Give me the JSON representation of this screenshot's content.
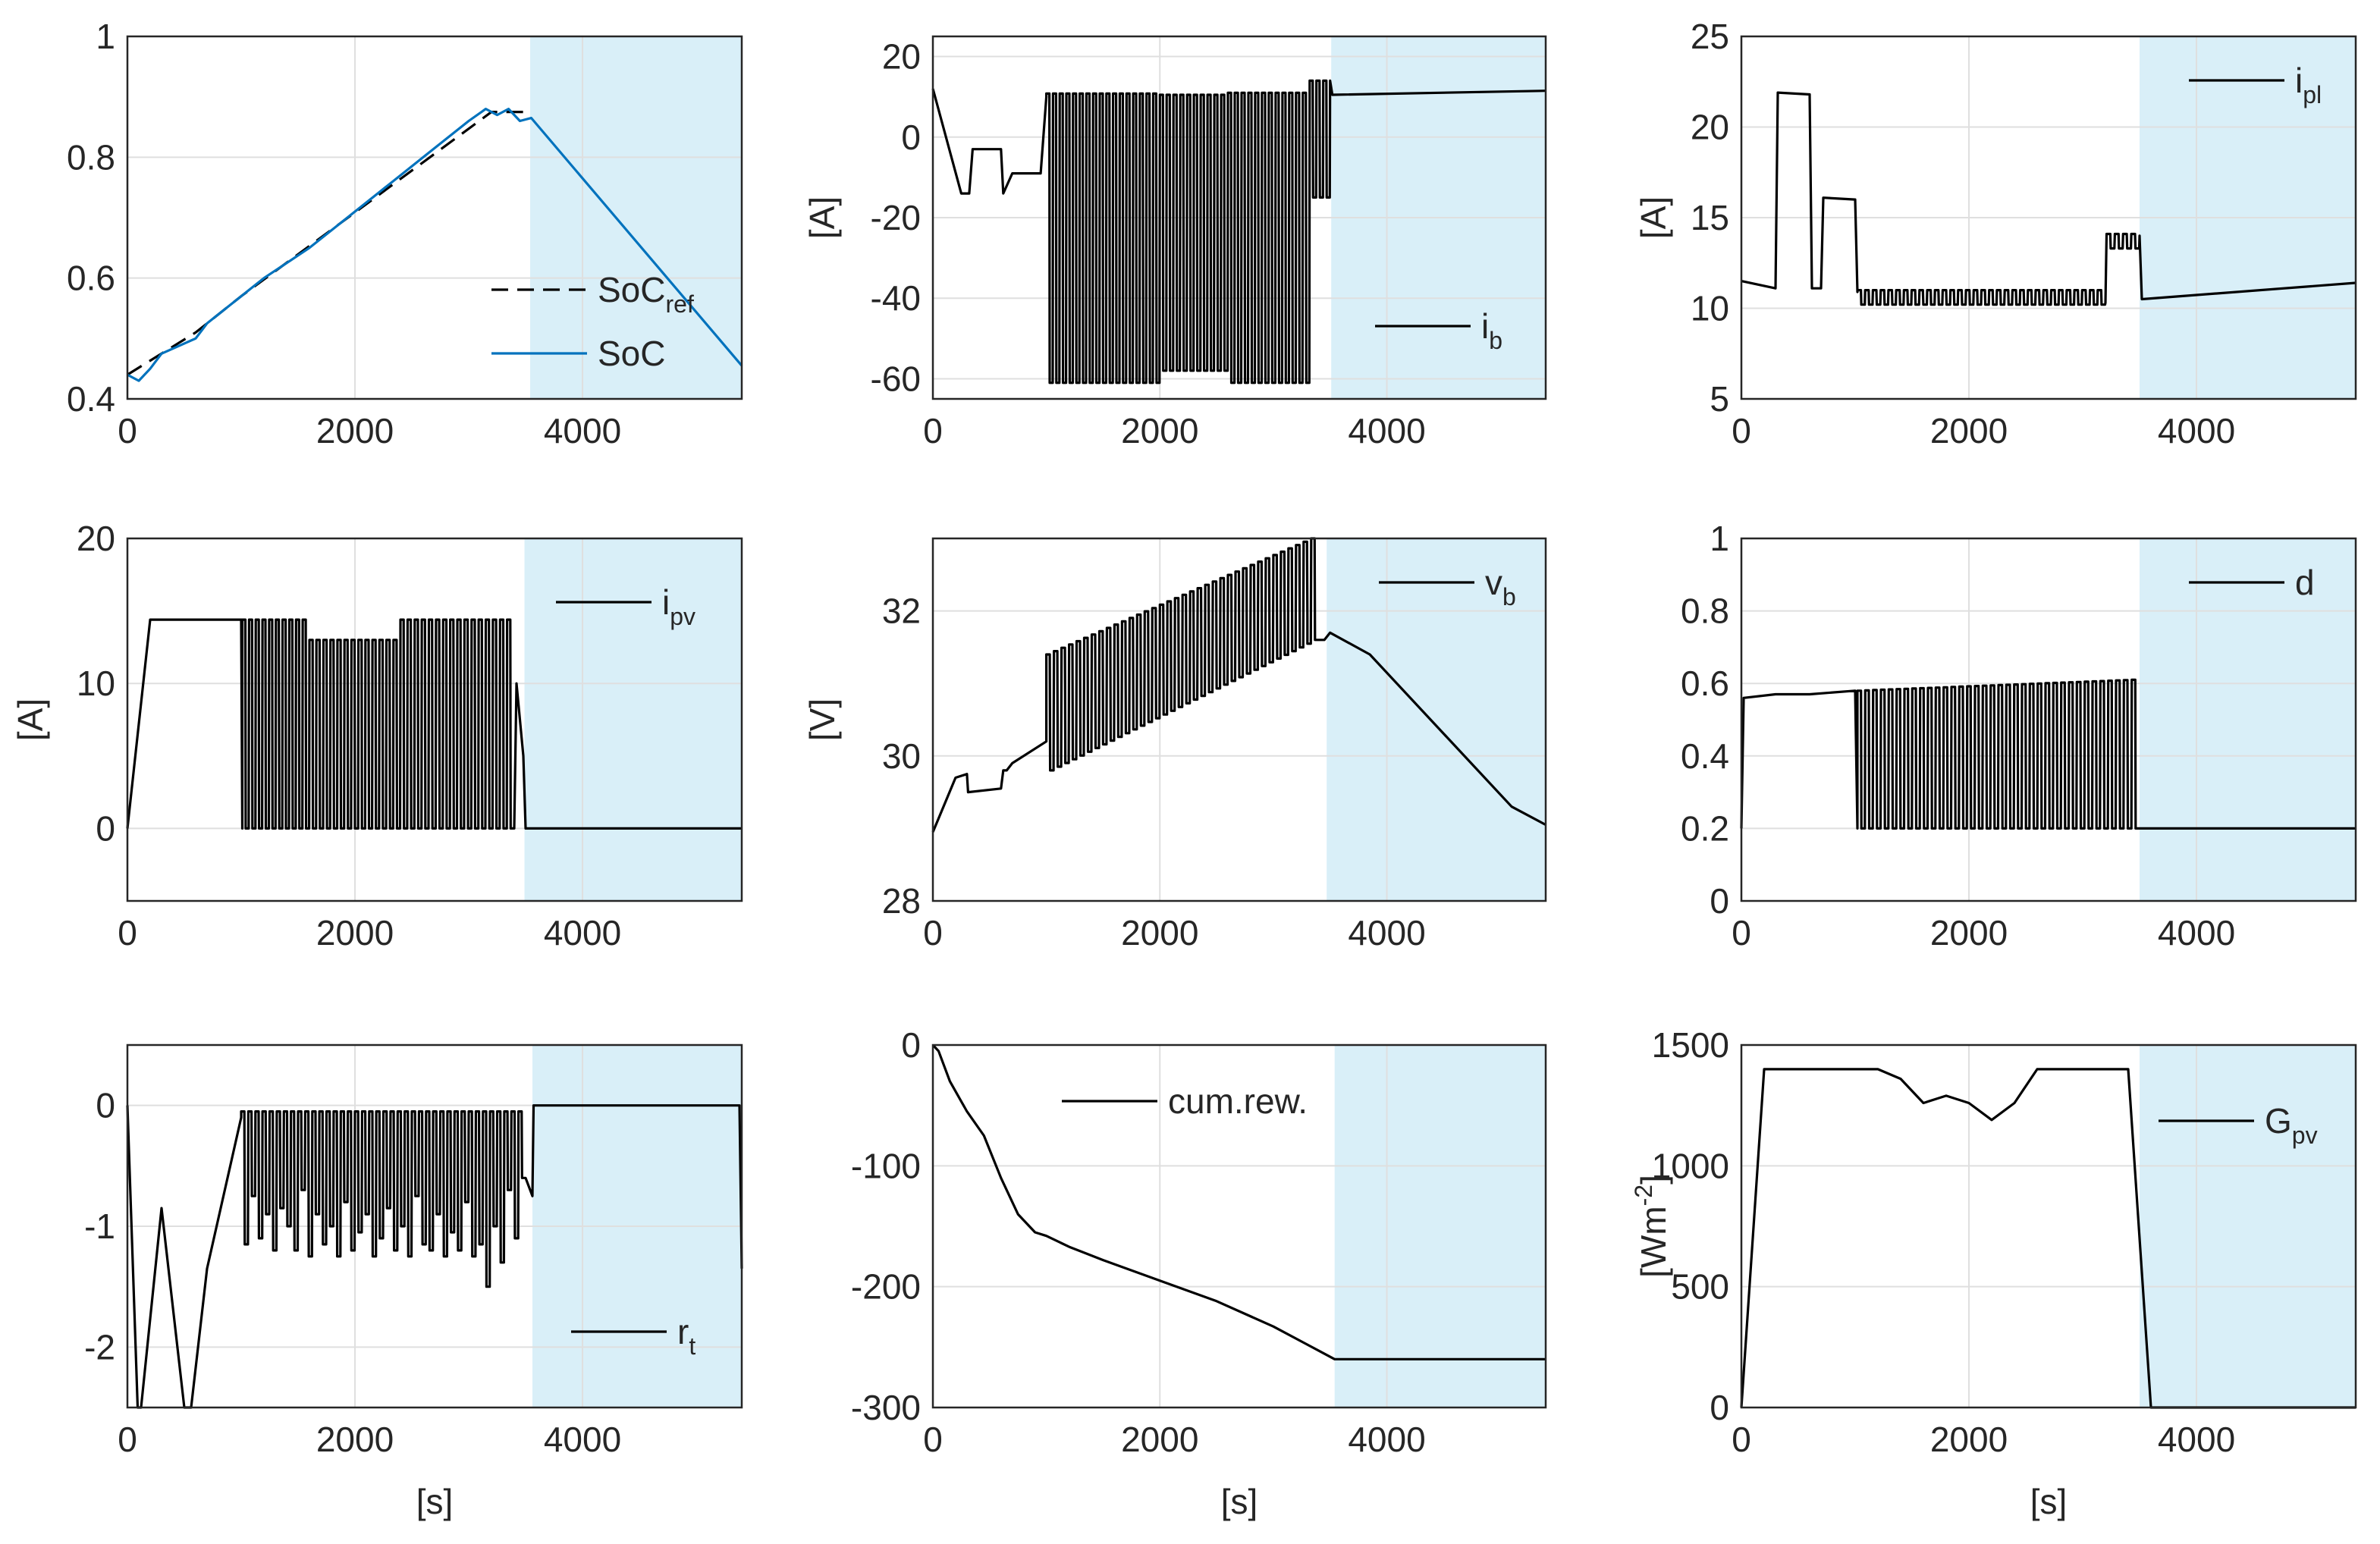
{
  "colors": {
    "shade": "#d9eff8",
    "grid": "#dfdfdf",
    "axis": "#262626",
    "line": "#000000",
    "blue": "#0072bd"
  },
  "chart_data": [
    {
      "type": "line",
      "title": "",
      "xlabel": "",
      "ylabel": "",
      "xlim": [
        0,
        5400
      ],
      "ylim": [
        0.4,
        1
      ],
      "xticks": [
        0,
        2000,
        4000
      ],
      "xtick_labels": [
        "0",
        "2000",
        "4000"
      ],
      "yticks": [
        0.4,
        0.6,
        0.8,
        1
      ],
      "ytick_labels": [
        "0.4",
        "0.6",
        "0.8",
        "1"
      ],
      "shade": [
        3540,
        5400
      ],
      "legend": {
        "position": "bottom-right",
        "entries": [
          {
            "base": "SoC",
            "sub": "ref",
            "sup": "",
            "series": 0
          },
          {
            "base": "SoC",
            "sub": "",
            "sup": "",
            "series": 1
          }
        ]
      },
      "series": [
        {
          "name": "SoC_ref",
          "color": "#000000",
          "dash": true,
          "x": [
            0,
            600,
            1000,
            3200,
            3500
          ],
          "y": [
            0.44,
            0.51,
            0.57,
            0.875,
            0.875
          ]
        },
        {
          "name": "SoC",
          "color": "#0072bd",
          "dash": false,
          "x": [
            0,
            100,
            200,
            300,
            600,
            700,
            1000,
            1200,
            1400,
            1600,
            1800,
            2000,
            2200,
            2400,
            2600,
            2800,
            3000,
            3150,
            3250,
            3350,
            3450,
            3550,
            5400
          ],
          "y": [
            0.44,
            0.43,
            0.45,
            0.475,
            0.5,
            0.525,
            0.57,
            0.6,
            0.625,
            0.65,
            0.68,
            0.71,
            0.74,
            0.77,
            0.8,
            0.83,
            0.86,
            0.88,
            0.87,
            0.88,
            0.86,
            0.865,
            0.455
          ]
        }
      ]
    },
    {
      "type": "line",
      "title": "",
      "xlabel": "",
      "ylabel": "[A]",
      "xlim": [
        0,
        5400
      ],
      "ylim": [
        -65,
        25
      ],
      "xticks": [
        0,
        2000,
        4000
      ],
      "xtick_labels": [
        "0",
        "2000",
        "4000"
      ],
      "yticks": [
        -60,
        -40,
        -20,
        0,
        20
      ],
      "ytick_labels": [
        "-60",
        "-40",
        "-20",
        "0",
        "20"
      ],
      "shade": [
        3510,
        5400
      ],
      "legend": {
        "position": "bottom-right",
        "entries": [
          {
            "base": "i",
            "sub": "b",
            "sup": "",
            "series": 0
          }
        ]
      },
      "series": [
        {
          "name": "i_b",
          "color": "#000000",
          "dash": false,
          "x": [
            0,
            250,
            320,
            350,
            600,
            620,
            700,
            950,
            1000,
            3500,
            3520,
            5400
          ],
          "y": [
            12,
            -14,
            -14,
            -3,
            -3,
            -14,
            -9,
            -9,
            10,
            14,
            10.5,
            11.5
          ],
          "osc": [
            {
              "x0": 1000,
              "x1": 2000,
              "n": 17,
              "top": 10.8,
              "bot": -61
            },
            {
              "x0": 2000,
              "x1": 2600,
              "n": 10,
              "top": 10.5,
              "bot": -58
            },
            {
              "x0": 2600,
              "x1": 3320,
              "n": 12,
              "top": 11,
              "bot": -61
            },
            {
              "x0": 3320,
              "x1": 3500,
              "n": 3,
              "top": 14,
              "bot": -15
            }
          ]
        }
      ]
    },
    {
      "type": "line",
      "title": "",
      "xlabel": "",
      "ylabel": "[A]",
      "xlim": [
        0,
        5400
      ],
      "ylim": [
        5,
        25
      ],
      "xticks": [
        0,
        2000,
        4000
      ],
      "xtick_labels": [
        "0",
        "2000",
        "4000"
      ],
      "yticks": [
        5,
        10,
        15,
        20,
        25
      ],
      "ytick_labels": [
        "5",
        "10",
        "15",
        "20",
        "25"
      ],
      "shade": [
        3500,
        5400
      ],
      "legend": {
        "position": "top-right",
        "entries": [
          {
            "base": "i",
            "sub": "pl",
            "sup": "",
            "series": 0
          }
        ]
      },
      "series": [
        {
          "name": "i_pl",
          "color": "#000000",
          "dash": false,
          "x": [
            0,
            300,
            320,
            600,
            620,
            700,
            720,
            1000,
            1020,
            3200,
            3210,
            3500,
            3520,
            5400
          ],
          "y": [
            11.5,
            11.1,
            21.9,
            21.8,
            11.1,
            11.1,
            16.1,
            16,
            10.9,
            10.3,
            14.1,
            14,
            10.5,
            11.4
          ],
          "osc": [
            {
              "x0": 1020,
              "x1": 3200,
              "n": 32,
              "top": 11,
              "bot": 10.2
            },
            {
              "x0": 3210,
              "x1": 3500,
              "n": 4,
              "top": 14.1,
              "bot": 13.3
            }
          ]
        }
      ]
    },
    {
      "type": "line",
      "title": "",
      "xlabel": "",
      "ylabel": "[A]",
      "xlim": [
        0,
        5400
      ],
      "ylim": [
        -5,
        20
      ],
      "xticks": [
        0,
        2000,
        4000
      ],
      "xtick_labels": [
        "0",
        "2000",
        "4000"
      ],
      "yticks": [
        0,
        10,
        20
      ],
      "ytick_labels": [
        "0",
        "10",
        "20"
      ],
      "shade": [
        3490,
        5400
      ],
      "legend": {
        "position": "top-right",
        "entries": [
          {
            "base": "i",
            "sub": "pv",
            "sup": "",
            "series": 0
          }
        ]
      },
      "series": [
        {
          "name": "i_pv",
          "color": "#000000",
          "dash": false,
          "x": [
            0,
            200,
            1000,
            1010,
            3400,
            3420,
            3480,
            3500,
            5400
          ],
          "y": [
            0,
            14.4,
            14.4,
            0,
            0,
            10,
            5,
            0,
            0
          ],
          "osc": [
            {
              "x0": 1010,
              "x1": 1600,
              "n": 10,
              "top": 14.4,
              "bot": 0
            },
            {
              "x0": 1600,
              "x1": 2400,
              "n": 13,
              "top": 13,
              "bot": 0
            },
            {
              "x0": 2400,
              "x1": 3400,
              "n": 16,
              "top": 14.4,
              "bot": 0
            }
          ]
        }
      ]
    },
    {
      "type": "line",
      "title": "",
      "xlabel": "",
      "ylabel": "[V]",
      "xlim": [
        0,
        5400
      ],
      "ylim": [
        28,
        33
      ],
      "xticks": [
        0,
        2000,
        4000
      ],
      "xtick_labels": [
        "0",
        "2000",
        "4000"
      ],
      "yticks": [
        28,
        30,
        32
      ],
      "ytick_labels": [
        "28",
        "30",
        "32"
      ],
      "shade": [
        3470,
        5400
      ],
      "legend": {
        "position": "top-right",
        "entries": [
          {
            "base": "v",
            "sub": "b",
            "sup": "",
            "series": 0
          }
        ]
      },
      "series": [
        {
          "name": "v_b",
          "color": "#000000",
          "dash": false,
          "x": [
            0,
            200,
            300,
            310,
            600,
            620,
            650,
            700,
            1000,
            3300,
            3450,
            3500,
            3850,
            5100,
            5400
          ],
          "y": [
            28.95,
            29.7,
            29.75,
            29.5,
            29.55,
            29.8,
            29.8,
            29.9,
            30.2,
            31.9,
            31.6,
            31.7,
            31.4,
            29.3,
            29.05
          ],
          "osc": [
            {
              "x0": 1000,
              "x1": 3400,
              "n": 36,
              "top0": 31.4,
              "top1": 33,
              "bot0": 29.8,
              "bot1": 31.6
            }
          ]
        }
      ]
    },
    {
      "type": "line",
      "title": "",
      "xlabel": "",
      "ylabel": "",
      "xlim": [
        0,
        5400
      ],
      "ylim": [
        0,
        1
      ],
      "xticks": [
        0,
        2000,
        4000
      ],
      "xtick_labels": [
        "0",
        "2000",
        "4000"
      ],
      "yticks": [
        0,
        0.2,
        0.4,
        0.6,
        0.8,
        1
      ],
      "ytick_labels": [
        "0",
        "0.2",
        "0.4",
        "0.6",
        "0.8",
        "1"
      ],
      "shade": [
        3500,
        5400
      ],
      "legend": {
        "position": "top-right",
        "entries": [
          {
            "base": "d",
            "sub": "",
            "sup": "",
            "series": 0
          }
        ]
      },
      "series": [
        {
          "name": "d",
          "color": "#000000",
          "dash": false,
          "x": [
            0,
            20,
            300,
            600,
            1000,
            1020,
            3500,
            3510,
            5400
          ],
          "y": [
            0.2,
            0.56,
            0.57,
            0.57,
            0.58,
            0.2,
            0.2,
            0.2,
            0.2
          ],
          "osc": [
            {
              "x0": 1020,
              "x1": 3500,
              "n": 36,
              "top0": 0.58,
              "top1": 0.61,
              "bot": 0.2
            }
          ]
        }
      ]
    },
    {
      "type": "line",
      "title": "",
      "xlabel": "",
      "ylabel": "",
      "xlim": [
        0,
        5400
      ],
      "ylim": [
        -2.5,
        0.5
      ],
      "xticks": [
        0,
        2000,
        4000
      ],
      "xtick_labels": [
        "0",
        "2000",
        "4000"
      ],
      "yticks": [
        -2,
        -1,
        0
      ],
      "ytick_labels": [
        "-2",
        "-1",
        "0"
      ],
      "shade": [
        3560,
        5400
      ],
      "legend": {
        "position": "bottom-right",
        "entries": [
          {
            "base": "r",
            "sub": "t",
            "sup": "",
            "series": 0
          }
        ]
      },
      "series": [
        {
          "name": "r_t",
          "color": "#000000",
          "dash": false,
          "x": [
            0,
            90,
            120,
            300,
            500,
            560,
            700,
            1000,
            3500,
            3560,
            3570,
            5380,
            5400
          ],
          "y": [
            0,
            -2.5,
            -2.5,
            -0.85,
            -2.5,
            -2.5,
            -1.35,
            -0.1,
            -0.6,
            -0.75,
            0,
            0,
            -1.35
          ],
          "osc": [
            {
              "x0": 1000,
              "x1": 3500,
              "n": 40,
              "top": -0.05,
              "bot": -1.15,
              "bot_var": [
                -1.15,
                -0.75,
                -1.1,
                -0.9,
                -1.2,
                -0.85,
                -1.0,
                -1.2,
                -0.7,
                -1.25,
                -0.9,
                -1.15,
                -1.0,
                -1.25,
                -0.8,
                -1.2,
                -1.05,
                -0.9,
                -1.25,
                -1.1,
                -0.85,
                -1.2,
                -1.0,
                -1.25,
                -0.75,
                -1.15,
                -1.2,
                -0.9,
                -1.25,
                -1.05,
                -1.2,
                -0.8,
                -1.25,
                -1.15,
                -1.5,
                -1.0,
                -1.3,
                -0.7,
                -1.1,
                -0.6
              ]
            }
          ]
        }
      ]
    },
    {
      "type": "line",
      "title": "",
      "xlabel": "[s]",
      "ylabel": "",
      "xlim": [
        0,
        5400
      ],
      "ylim": [
        -300,
        0
      ],
      "xticks": [
        0,
        2000,
        4000
      ],
      "xtick_labels": [
        "0",
        "2000",
        "4000"
      ],
      "yticks": [
        -300,
        -200,
        -100,
        0
      ],
      "ytick_labels": [
        "-300",
        "-200",
        "-100",
        "0"
      ],
      "shade": [
        3540,
        5400
      ],
      "legend": {
        "position": "top-middle",
        "entries": [
          {
            "base": "cum.rew.",
            "sub": "",
            "sup": "",
            "series": 0
          }
        ]
      },
      "series": [
        {
          "name": "cum.rew.",
          "color": "#000000",
          "dash": false,
          "x": [
            0,
            50,
            150,
            300,
            450,
            600,
            750,
            900,
            1000,
            1200,
            1500,
            2000,
            2500,
            3000,
            3300,
            3540,
            5400
          ],
          "y": [
            0,
            -5,
            -30,
            -55,
            -75,
            -110,
            -140,
            -155,
            -158,
            -167,
            -178,
            -195,
            -212,
            -233,
            -248,
            -260,
            -260
          ]
        }
      ]
    },
    {
      "type": "line",
      "title": "",
      "xlabel": "[s]",
      "ylabel": "[Wm-2]",
      "xlim": [
        0,
        5400
      ],
      "ylim": [
        0,
        1500
      ],
      "xticks": [
        0,
        2000,
        4000
      ],
      "xtick_labels": [
        "0",
        "2000",
        "4000"
      ],
      "yticks": [
        0,
        500,
        1000,
        1500
      ],
      "ytick_labels": [
        "0",
        "500",
        "1000",
        "1500"
      ],
      "shade": [
        3500,
        5400
      ],
      "legend": {
        "position": "top-right",
        "entries": [
          {
            "base": "G",
            "sub": "pv",
            "sup": "",
            "series": 0
          }
        ]
      },
      "series": [
        {
          "name": "G_pv",
          "color": "#000000",
          "dash": false,
          "x": [
            0,
            200,
            1200,
            1400,
            1600,
            1800,
            2000,
            2200,
            2400,
            2600,
            3400,
            3600,
            5400
          ],
          "y": [
            0,
            1400,
            1400,
            1360,
            1260,
            1290,
            1260,
            1190,
            1260,
            1400,
            1400,
            0,
            0
          ]
        }
      ]
    }
  ]
}
